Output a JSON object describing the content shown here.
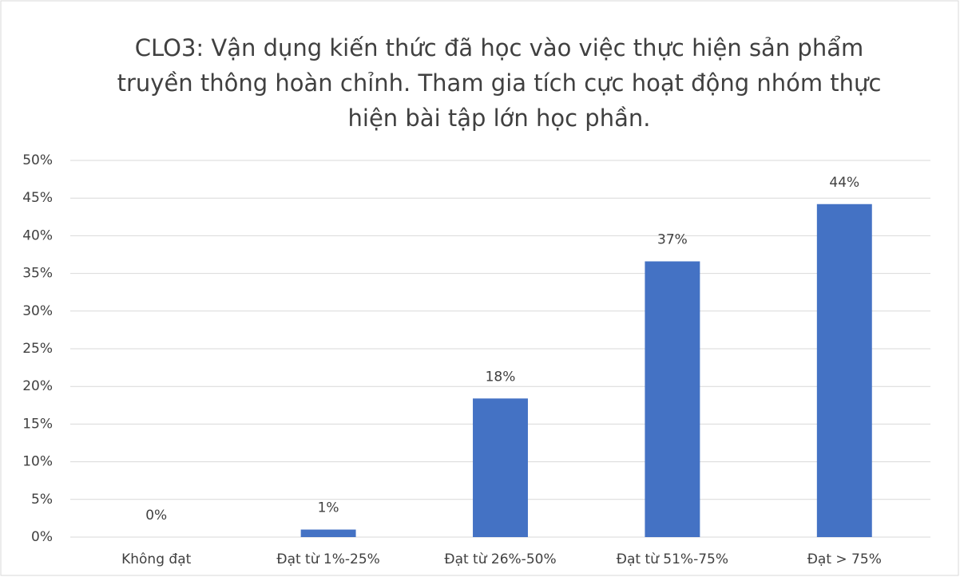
{
  "chart_data": {
    "type": "bar",
    "title": "CLO3: Vận dụng kiến thức đã học vào việc thực hiện sản phẩm truyền thông hoàn chỉnh. Tham gia tích cực hoạt động nhóm thực hiện bài tập lớn học phần.",
    "categories": [
      "Không đạt",
      "Đạt từ 1%-25%",
      "Đạt từ 26%-50%",
      "Đạt từ 51%-75%",
      "Đạt > 75%"
    ],
    "values": [
      0,
      1,
      18.4,
      36.6,
      44.2
    ],
    "value_labels": [
      "0%",
      "1%",
      "18%",
      "37%",
      "44%"
    ],
    "color": "#4472c4",
    "ylim": [
      0,
      50
    ],
    "yticks": [
      {
        "value": 0,
        "label": "0%"
      },
      {
        "value": 5,
        "label": "5%"
      },
      {
        "value": 10,
        "label": "10%"
      },
      {
        "value": 15,
        "label": "15%"
      },
      {
        "value": 20,
        "label": "20%"
      },
      {
        "value": 25,
        "label": "25%"
      },
      {
        "value": 30,
        "label": "30%"
      },
      {
        "value": 35,
        "label": "35%"
      },
      {
        "value": 40,
        "label": "40%"
      },
      {
        "value": 45,
        "label": "45%"
      },
      {
        "value": 50,
        "label": "50%"
      }
    ],
    "grid": true
  }
}
